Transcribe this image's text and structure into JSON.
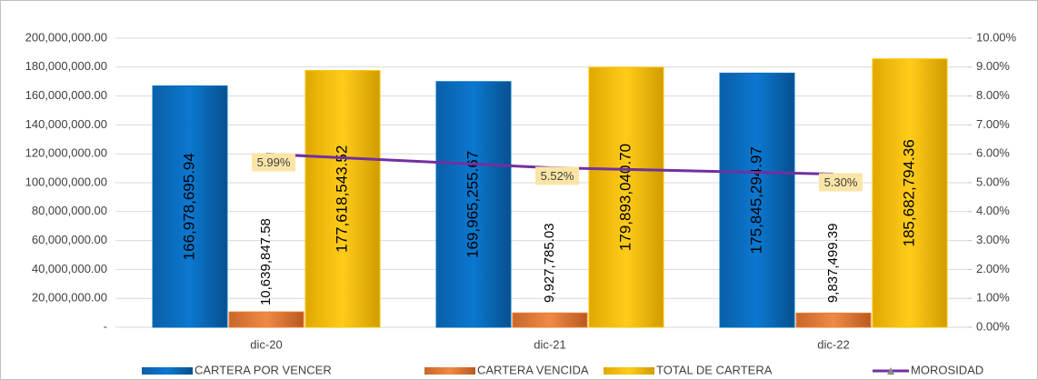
{
  "chart_data": {
    "type": "bar",
    "categories": [
      "dic-20",
      "dic-21",
      "dic-22"
    ],
    "series": [
      {
        "name": "CARTERA POR VENCER",
        "color": "#0070c0",
        "values": [
          166978695.94,
          169965255.67,
          175845294.97
        ],
        "value_labels": [
          "166,978,695.94",
          "169,965,255.67",
          "175,845,294.97"
        ]
      },
      {
        "name": "CARTERA VENCIDA",
        "color": "#ed7d31",
        "values": [
          10639847.58,
          9927785.03,
          9837499.39
        ],
        "value_labels": [
          "10,639,847.58",
          "9,927,785.03",
          "9,837,499.39"
        ]
      },
      {
        "name": "TOTAL DE CARTERA",
        "color": "#ffc000",
        "values": [
          177618543.52,
          179893040.7,
          185682794.36
        ],
        "value_labels": [
          "177,618,543.52",
          "179,893,040.70",
          "185,682,794.36"
        ]
      },
      {
        "name": "MOROSIDAD",
        "type": "line",
        "axis": "y2",
        "color": "#7030a0",
        "values": [
          5.99,
          5.52,
          5.3
        ],
        "value_labels": [
          "5.99%",
          "5.52%",
          "5.30%"
        ]
      }
    ],
    "ylim": [
      0,
      200000000
    ],
    "yticks": [
      {
        "value": 0,
        "label": "-"
      },
      {
        "value": 20000000,
        "label": "20,000,000.00"
      },
      {
        "value": 40000000,
        "label": "40,000,000.00"
      },
      {
        "value": 60000000,
        "label": "60,000,000.00"
      },
      {
        "value": 80000000,
        "label": "80,000,000.00"
      },
      {
        "value": 100000000,
        "label": "100,000,000.00"
      },
      {
        "value": 120000000,
        "label": "120,000,000.00"
      },
      {
        "value": 140000000,
        "label": "140,000,000.00"
      },
      {
        "value": 160000000,
        "label": "160,000,000.00"
      },
      {
        "value": 180000000,
        "label": "180,000,000.00"
      },
      {
        "value": 200000000,
        "label": "200,000,000.00"
      }
    ],
    "y2lim": [
      0,
      10
    ],
    "y2ticks": [
      {
        "value": 0,
        "label": "0.00%"
      },
      {
        "value": 1,
        "label": "1.00%"
      },
      {
        "value": 2,
        "label": "2.00%"
      },
      {
        "value": 3,
        "label": "3.00%"
      },
      {
        "value": 4,
        "label": "4.00%"
      },
      {
        "value": 5,
        "label": "5.00%"
      },
      {
        "value": 6,
        "label": "6.00%"
      },
      {
        "value": 7,
        "label": "7.00%"
      },
      {
        "value": 8,
        "label": "8.00%"
      },
      {
        "value": 9,
        "label": "9.00%"
      },
      {
        "value": 10,
        "label": "10.00%"
      }
    ],
    "grid": true,
    "legend": "bottom"
  }
}
